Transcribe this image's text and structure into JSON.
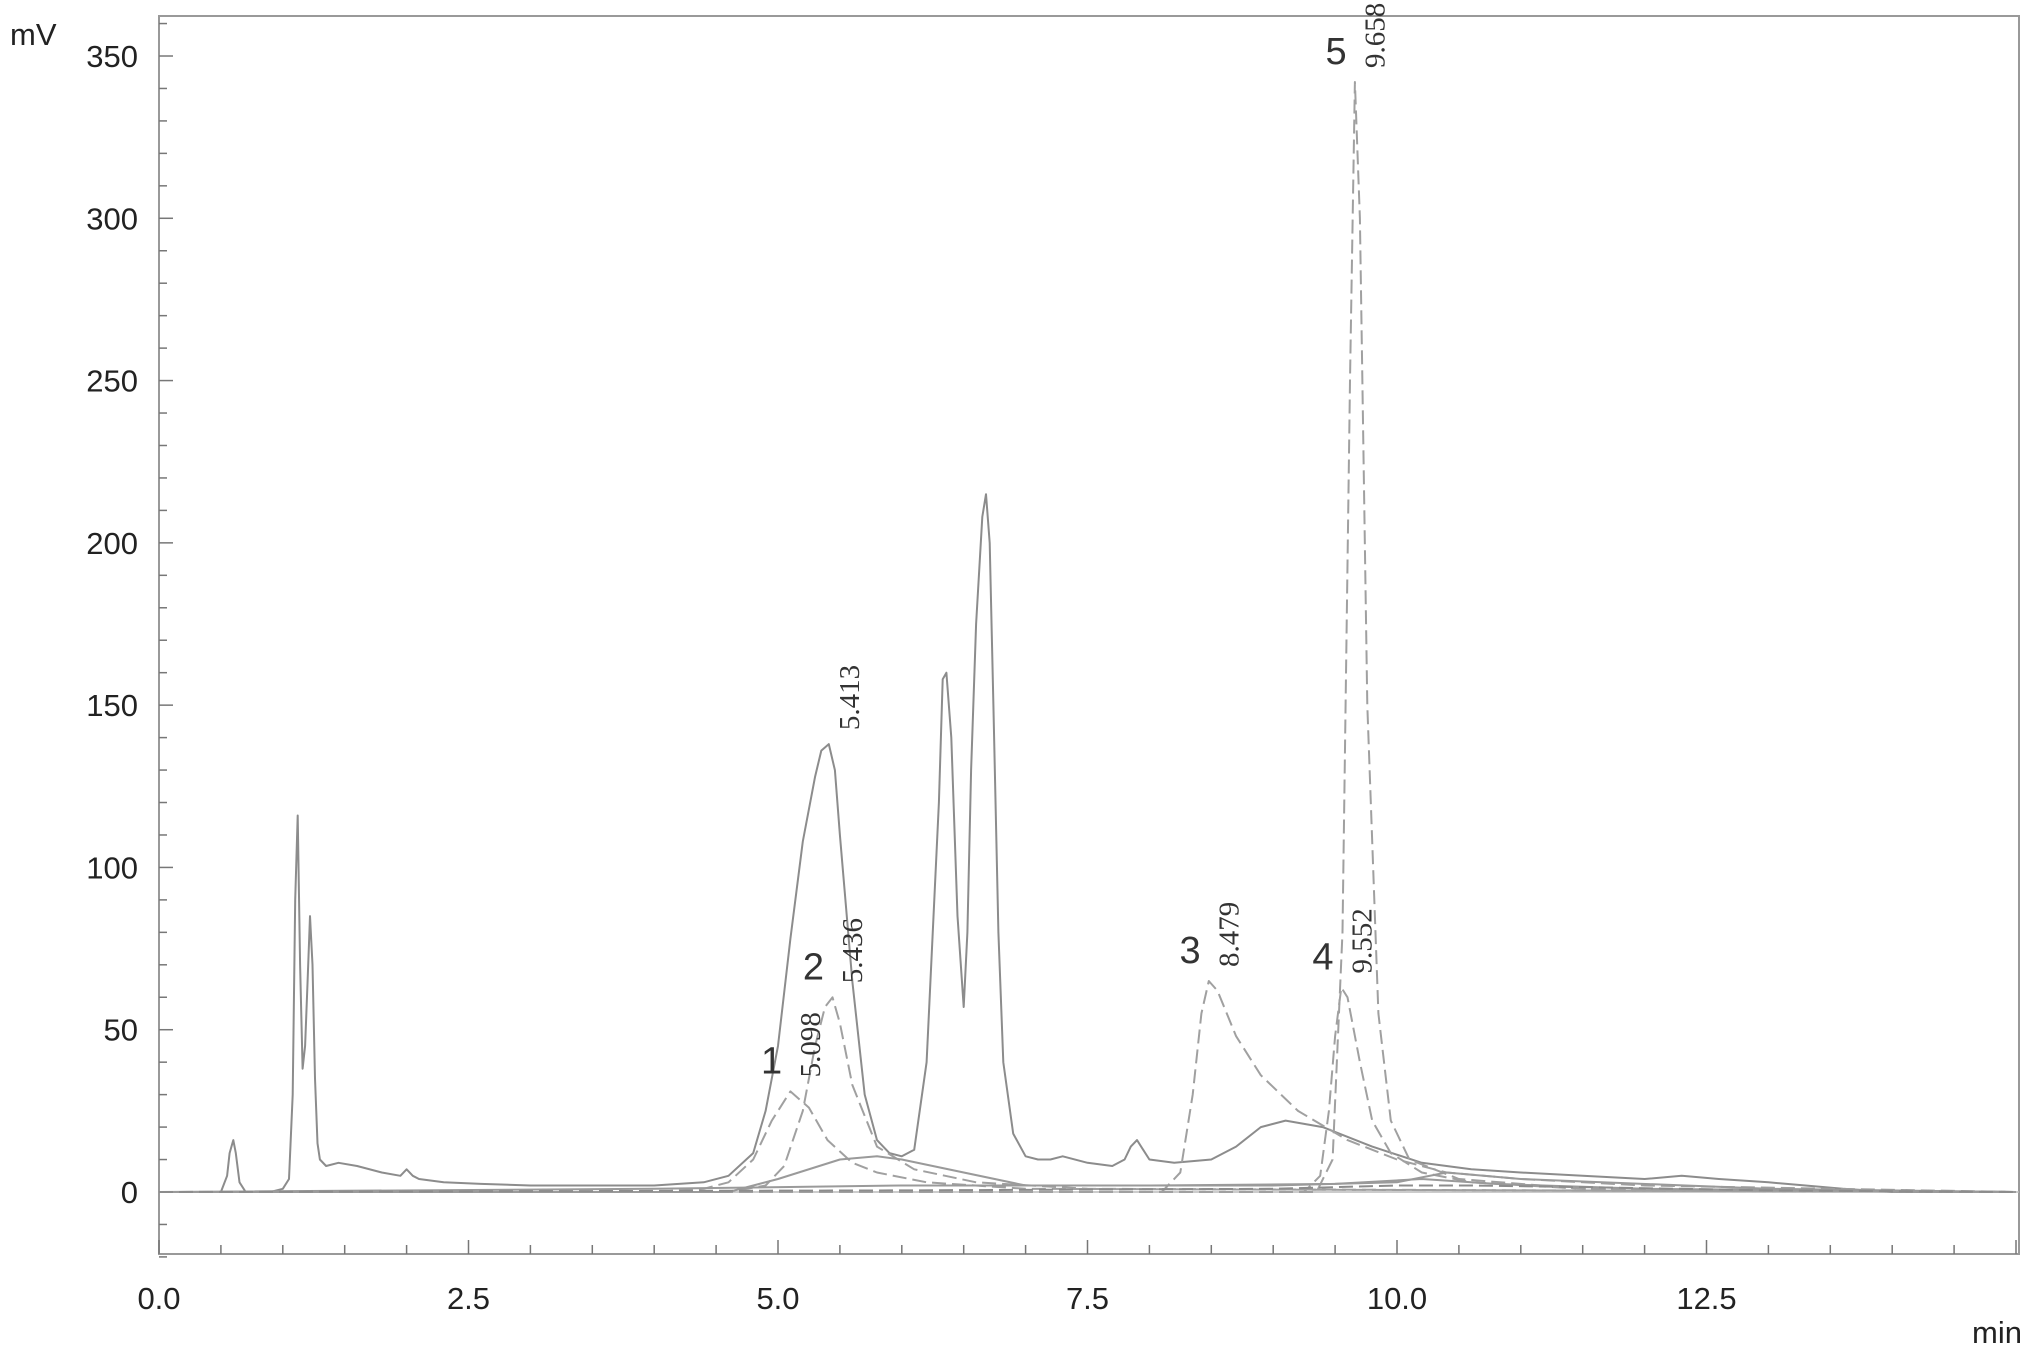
{
  "chart_data": {
    "type": "line",
    "title": "",
    "xlabel": "min",
    "ylabel": "mV",
    "xlim": [
      0.0,
      15.0
    ],
    "ylim": [
      -20,
      360
    ],
    "x_ticks": [
      "0.0",
      "2.5",
      "5.0",
      "7.5",
      "10.0",
      "12.5"
    ],
    "x_tick_values": [
      0.0,
      2.5,
      5.0,
      7.5,
      10.0,
      12.5
    ],
    "y_ticks": [
      "0",
      "50",
      "100",
      "150",
      "200",
      "250",
      "300",
      "350"
    ],
    "y_tick_values": [
      0,
      50,
      100,
      150,
      200,
      250,
      300,
      350
    ],
    "grid": false,
    "legend": "none",
    "series": [
      {
        "style": "solid",
        "color": "#8c8c8c",
        "x": [
          0.0,
          0.5,
          0.55,
          0.57,
          0.6,
          0.62,
          0.65,
          0.7,
          0.8,
          0.9,
          1.0,
          1.05,
          1.08,
          1.1,
          1.12,
          1.14,
          1.16,
          1.18,
          1.2,
          1.22,
          1.24,
          1.26,
          1.28,
          1.3,
          1.35,
          1.45,
          1.6,
          1.8,
          1.95,
          2.0,
          2.05,
          2.1,
          2.3,
          2.6,
          3.0,
          3.5,
          4.0,
          4.4,
          4.6,
          4.8,
          4.9,
          5.0,
          5.1,
          5.2,
          5.3,
          5.35,
          5.41,
          5.46,
          5.5,
          5.6,
          5.7,
          5.8,
          5.9,
          6.0,
          6.1,
          6.2,
          6.3,
          6.33,
          6.36,
          6.4,
          6.45,
          6.5,
          6.53,
          6.56,
          6.6,
          6.65,
          6.68,
          6.71,
          6.74,
          6.78,
          6.82,
          6.9,
          7.0,
          7.1,
          7.2,
          7.3,
          7.5,
          7.7,
          7.8,
          7.85,
          7.9,
          7.95,
          8.0,
          8.2,
          8.5,
          8.7,
          8.9,
          9.1,
          9.4,
          9.8,
          10.2,
          10.6,
          11.0,
          11.5,
          12.0,
          12.3,
          12.6,
          13.0,
          13.3,
          13.6,
          14.0,
          15.0
        ],
        "y": [
          0,
          0,
          5,
          12,
          16,
          12,
          3,
          0,
          0,
          0,
          1,
          4,
          30,
          90,
          116,
          70,
          38,
          45,
          65,
          85,
          70,
          35,
          15,
          10,
          8,
          9,
          8,
          6,
          5,
          7,
          5,
          4,
          3,
          2.5,
          2,
          2,
          2,
          3,
          5,
          12,
          25,
          45,
          78,
          108,
          128,
          136,
          138,
          130,
          110,
          65,
          30,
          16,
          12,
          11,
          13,
          40,
          120,
          158,
          160,
          140,
          85,
          57,
          80,
          130,
          175,
          208,
          215,
          200,
          150,
          80,
          40,
          18,
          11,
          10,
          10,
          11,
          9,
          8,
          10,
          14,
          16,
          13,
          10,
          9,
          10,
          14,
          20,
          22,
          20,
          14,
          9,
          7,
          6,
          5,
          4,
          5,
          4,
          3,
          2,
          1,
          0,
          0
        ]
      },
      {
        "style": "dashed",
        "color": "#a0a0a0",
        "label": "1",
        "x": [
          0.0,
          4.0,
          4.4,
          4.6,
          4.8,
          4.95,
          5.1,
          5.25,
          5.4,
          5.6,
          5.8,
          6.2,
          7.0,
          15.0
        ],
        "y": [
          0,
          0,
          1,
          3,
          10,
          22,
          31,
          26,
          16,
          9,
          6,
          3,
          1,
          0
        ]
      },
      {
        "style": "dashed",
        "color": "#a0a0a0",
        "label": "2",
        "x": [
          0.0,
          4.6,
          4.9,
          5.05,
          5.2,
          5.3,
          5.38,
          5.44,
          5.5,
          5.6,
          5.8,
          6.1,
          6.6,
          7.5,
          15.0
        ],
        "y": [
          0,
          0,
          2,
          8,
          25,
          45,
          57,
          60,
          52,
          33,
          14,
          7,
          3,
          1,
          0
        ]
      },
      {
        "style": "dashed",
        "color": "#a0a0a0",
        "label": "3",
        "x": [
          0.0,
          8.1,
          8.25,
          8.35,
          8.42,
          8.48,
          8.55,
          8.7,
          8.9,
          9.2,
          9.6,
          10.0,
          10.4,
          11.0,
          12.0,
          15.0
        ],
        "y": [
          0,
          0,
          6,
          30,
          55,
          65,
          62,
          48,
          36,
          25,
          16,
          10,
          6,
          4,
          2,
          0
        ]
      },
      {
        "style": "dashed",
        "color": "#a0a0a0",
        "label": "4",
        "x": [
          0.0,
          9.25,
          9.38,
          9.45,
          9.5,
          9.55,
          9.6,
          9.7,
          9.8,
          9.95,
          10.2,
          10.6,
          11.5,
          15.0
        ],
        "y": [
          0,
          0,
          5,
          25,
          48,
          63,
          60,
          40,
          22,
          12,
          6,
          3,
          1,
          0
        ]
      },
      {
        "style": "dashed",
        "color": "#a0a0a0",
        "label": "5",
        "x": [
          0.0,
          9.35,
          9.48,
          9.56,
          9.62,
          9.66,
          9.7,
          9.76,
          9.85,
          9.95,
          10.1,
          10.5,
          11.5,
          15.0
        ],
        "y": [
          0,
          0,
          10,
          80,
          250,
          342,
          300,
          150,
          55,
          22,
          10,
          4,
          1,
          0
        ]
      },
      {
        "style": "solid",
        "color": "#9a9a9a",
        "x": [
          0.0,
          4.6,
          5.0,
          5.5,
          5.8,
          6.0,
          7.0,
          9.0,
          10.0,
          10.4,
          11.0,
          13.0,
          15.0
        ],
        "y": [
          0,
          0,
          4,
          10,
          11,
          10,
          2,
          2,
          3,
          6,
          4,
          1,
          0
        ]
      },
      {
        "style": "solid",
        "color": "#9a9a9a",
        "x": [
          0.0,
          4.0,
          6.0,
          8.0,
          9.5,
          10.2,
          10.8,
          12.0,
          15.0
        ],
        "y": [
          0,
          1,
          2,
          2,
          2.5,
          4,
          2.5,
          1,
          0
        ]
      },
      {
        "style": "dashed",
        "color": "#8c8c8c",
        "x": [
          0.0,
          6.0,
          9.0,
          10.0,
          10.6,
          11.5,
          13.0,
          15.0
        ],
        "y": [
          0,
          0.5,
          1,
          2,
          2,
          1.5,
          0.5,
          0
        ]
      }
    ],
    "annotations": [
      {
        "peak": "1",
        "rt": "5.098",
        "x": 5.098,
        "y": 31
      },
      {
        "peak": "2",
        "rt": "5.436",
        "x": 5.436,
        "y": 60
      },
      {
        "peak": "",
        "rt": "5.413",
        "x": 5.413,
        "y": 138
      },
      {
        "peak": "3",
        "rt": "8.479",
        "x": 8.479,
        "y": 65
      },
      {
        "peak": "4",
        "rt": "9.552",
        "x": 9.552,
        "y": 63
      },
      {
        "peak": "5",
        "rt": "9.658",
        "x": 9.658,
        "y": 342
      }
    ]
  }
}
